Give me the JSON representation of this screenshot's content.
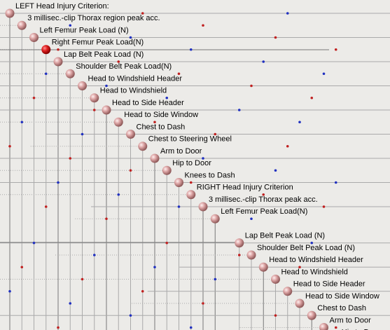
{
  "nodes": [
    {
      "label": "LEFT Head Injury Criterion:"
    },
    {
      "label": "3 millisec.-clip Thorax region peak acc."
    },
    {
      "label": "Left Femur Peak Load (N)"
    },
    {
      "label": "Right Femur Peak Load(N)"
    },
    {
      "label": "Lap Belt Peak Load (N)"
    },
    {
      "label": "Shoulder Belt Peak Load(N)"
    },
    {
      "label": "Head to Windshield Header"
    },
    {
      "label": "Head to Windshield"
    },
    {
      "label": "Head to Side Header"
    },
    {
      "label": "Head to Side Window"
    },
    {
      "label": "Chest to Dash"
    },
    {
      "label": "Chest to Steering Wheel"
    },
    {
      "label": "Arm to Door"
    },
    {
      "label": "Hip to Door"
    },
    {
      "label": "Knees to Dash"
    },
    {
      "label": "RIGHT Head Injury Criterion"
    },
    {
      "label": "3 millisec.-clip Thorax peak acc."
    },
    {
      "label": "Left Femur Peak Load(N)"
    },
    {
      "label": "Lap Belt Peak Load (N)"
    },
    {
      "label": "Shoulder Belt Peak Load (N)"
    },
    {
      "label": "Head to Windshield Header"
    },
    {
      "label": "Head to Windshield"
    },
    {
      "label": "Head to Side Header"
    },
    {
      "label": "Head to Side Window"
    },
    {
      "label": "Chest to Dash"
    },
    {
      "label": "Arm to Door"
    },
    {
      "label": "Hip to Door"
    }
  ]
}
